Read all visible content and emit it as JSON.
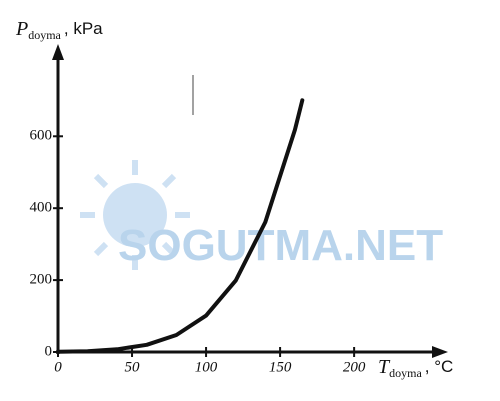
{
  "chart_data": {
    "type": "line",
    "ylabel": {
      "symbol": "P",
      "subscript": "doyma",
      "unit": ", kPa"
    },
    "xlabel": {
      "symbol": "T",
      "subscript": "doyma",
      "unit": ", °C"
    },
    "watermark": "SOGUTMA.NET",
    "x": [
      0,
      20,
      40,
      60,
      80,
      100,
      120,
      140,
      160,
      165
    ],
    "series": [
      {
        "color": "#111111",
        "values": [
          0.61,
          2.34,
          7.38,
          19.9,
          47.4,
          101.3,
          198.5,
          361.3,
          617.8,
          700
        ]
      }
    ],
    "xlim": [
      0,
      258
    ],
    "ylim": [
      0,
      840
    ],
    "xticks": [
      0,
      50,
      100,
      150,
      200
    ],
    "yticks": [
      0,
      200,
      400,
      600
    ]
  }
}
